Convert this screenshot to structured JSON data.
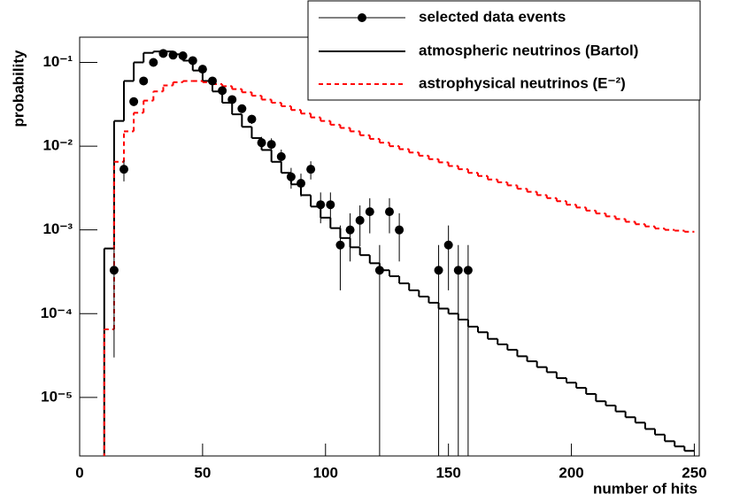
{
  "chart_data": {
    "type": "histogram",
    "xlabel": "number of hits",
    "ylabel": "probability",
    "log_y": true,
    "legend": "top-right",
    "xlim": [
      0,
      252
    ],
    "ylim": [
      2e-06,
      0.2
    ],
    "xticks": [
      0,
      50,
      100,
      150,
      200,
      250
    ],
    "yticks": [
      {
        "value": 1e-05,
        "label": "10⁻⁵"
      },
      {
        "value": 0.0001,
        "label": "10⁻⁴"
      },
      {
        "value": 0.001,
        "label": "10⁻³"
      },
      {
        "value": 0.01,
        "label": "10⁻²"
      },
      {
        "value": 0.1,
        "label": "10⁻¹"
      }
    ],
    "bins": [
      0,
      10,
      14,
      18,
      22,
      26,
      30,
      34,
      38,
      42,
      46,
      50,
      54,
      58,
      62,
      66,
      70,
      74,
      78,
      82,
      86,
      90,
      94,
      98,
      102,
      106,
      110,
      114,
      118,
      122,
      126,
      130,
      134,
      138,
      142,
      146,
      150,
      154,
      158,
      162,
      166,
      170,
      174,
      178,
      182,
      186,
      190,
      194,
      198,
      202,
      206,
      210,
      214,
      218,
      222,
      226,
      230,
      234,
      238,
      242,
      246,
      250
    ],
    "data": {
      "name": "selected data events",
      "color": "#000000",
      "x": [
        14,
        18,
        22,
        26,
        30,
        34,
        38,
        42,
        46,
        50,
        54,
        58,
        62,
        66,
        70,
        74,
        78,
        82,
        86,
        90,
        94,
        98,
        102,
        106,
        110,
        114,
        118,
        122,
        126,
        130,
        146,
        150,
        154,
        158
      ],
      "values": [
        0.00033,
        0.0053,
        0.034,
        0.06,
        0.1,
        0.128,
        0.122,
        0.12,
        0.105,
        0.083,
        0.06,
        0.046,
        0.036,
        0.028,
        0.021,
        0.011,
        0.0105,
        0.0075,
        0.0043,
        0.0036,
        0.0053,
        0.002,
        0.002,
        0.00066,
        0.001,
        0.0013,
        0.00165,
        0.00033,
        0.00165,
        0.001,
        0.00033,
        0.00066,
        0.00033,
        0.00033
      ],
      "errors": [
        0.0003,
        0.0015,
        0.004,
        0.005,
        0.007,
        0.008,
        0.008,
        0.008,
        0.007,
        0.006,
        0.005,
        0.004,
        0.0035,
        0.003,
        0.0026,
        0.0019,
        0.0019,
        0.0016,
        0.0012,
        0.0011,
        0.0013,
        0.0008,
        0.0008,
        0.00047,
        0.00058,
        0.00066,
        0.00074,
        0.00033,
        0.00074,
        0.00058,
        0.00033,
        0.00047,
        0.00033,
        0.00033
      ]
    },
    "series": [
      {
        "name": "atmospheric neutrinos (Bartol)",
        "color": "#000000",
        "dashed": false,
        "values": [
          0,
          0.0006,
          0.02,
          0.06,
          0.1,
          0.13,
          0.135,
          0.135,
          0.125,
          0.105,
          0.08,
          0.06,
          0.045,
          0.033,
          0.024,
          0.017,
          0.0125,
          0.009,
          0.0065,
          0.0048,
          0.0035,
          0.0026,
          0.0019,
          0.0014,
          0.00105,
          0.0008,
          0.00062,
          0.0005,
          0.0004,
          0.00033,
          0.00028,
          0.00023,
          0.00019,
          0.00016,
          0.000135,
          0.000115,
          0.0001,
          8.5e-05,
          7e-05,
          6e-05,
          5e-05,
          4.3e-05,
          3.7e-05,
          3.1e-05,
          2.7e-05,
          2.3e-05,
          2e-05,
          1.7e-05,
          1.5e-05,
          1.3e-05,
          1.1e-05,
          9e-06,
          8e-06,
          6.8e-06,
          5.8e-06,
          5e-06,
          4.2e-06,
          3.6e-06,
          3e-06,
          2.6e-06,
          2.3e-06
        ]
      },
      {
        "name": "astrophysical neutrinos (E⁻²)",
        "color": "#ff0000",
        "dashed": true,
        "values": [
          0,
          6.5e-05,
          0.0065,
          0.015,
          0.025,
          0.035,
          0.045,
          0.053,
          0.058,
          0.06,
          0.06,
          0.058,
          0.055,
          0.052,
          0.048,
          0.044,
          0.04,
          0.036,
          0.033,
          0.03,
          0.027,
          0.0245,
          0.022,
          0.02,
          0.018,
          0.0165,
          0.015,
          0.0135,
          0.0122,
          0.011,
          0.01,
          0.0092,
          0.0084,
          0.0077,
          0.007,
          0.0064,
          0.0058,
          0.0053,
          0.0048,
          0.0044,
          0.004,
          0.0037,
          0.0034,
          0.0031,
          0.00285,
          0.0026,
          0.0024,
          0.0022,
          0.002,
          0.00185,
          0.0017,
          0.00157,
          0.00145,
          0.00135,
          0.00125,
          0.00117,
          0.0011,
          0.00104,
          0.001,
          0.00098,
          0.00095
        ]
      }
    ]
  }
}
